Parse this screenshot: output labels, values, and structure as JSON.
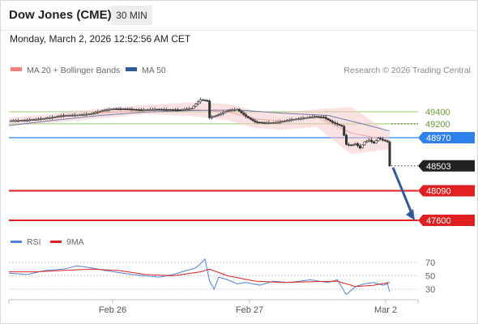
{
  "header": {
    "title": "Dow Jones (CME)",
    "timeframe": "30 MIN",
    "timestamp": "Monday, March 2, 2026 12:52:56 AM CET"
  },
  "legend": {
    "bollinger": {
      "label": "MA 20 + Bollinger Bands",
      "color": "#f08080"
    },
    "ma50": {
      "label": "MA 50",
      "color": "#2d5b9c"
    },
    "source": "Research © 2026 Trading Central"
  },
  "levels": [
    {
      "value": 49400,
      "label": "49400",
      "kind": "resistance",
      "color": "#9bc86a"
    },
    {
      "value": 49200,
      "label": "49200",
      "kind": "resistance",
      "color": "#9bc86a"
    },
    {
      "value": 48970,
      "label": "48970",
      "kind": "pivot",
      "color": "#2f80ed"
    },
    {
      "value": 48503,
      "label": "48503",
      "kind": "last",
      "color": "#222222"
    },
    {
      "value": 48090,
      "label": "48090",
      "kind": "support",
      "color": "#e02020"
    },
    {
      "value": 47600,
      "label": "47600",
      "kind": "support",
      "color": "#e02020"
    }
  ],
  "rsi_legend": {
    "rsi": "RSI",
    "ma": "9MA",
    "rsi_color": "#4f7fd6",
    "ma_color": "#e02020"
  },
  "rsi_ticks": [
    "70",
    "50",
    "30"
  ],
  "x_ticks": [
    "Feb 26",
    "Feb 27",
    "Mar 2"
  ],
  "chart_data": {
    "type": "candlestick",
    "y_range": [
      47500,
      50000
    ],
    "price_path": [
      [
        0,
        49250
      ],
      [
        6,
        49255
      ],
      [
        12,
        49275
      ],
      [
        18,
        49300
      ],
      [
        24,
        49340
      ],
      [
        30,
        49345
      ],
      [
        36,
        49365
      ],
      [
        41,
        49420
      ],
      [
        46,
        49450
      ],
      [
        52,
        49445
      ],
      [
        58,
        49430
      ],
      [
        64,
        49440
      ],
      [
        70,
        49435
      ],
      [
        75,
        49430
      ],
      [
        80,
        49455
      ],
      [
        84,
        49600
      ],
      [
        87,
        49580
      ],
      [
        88,
        49300
      ],
      [
        92,
        49350
      ],
      [
        96,
        49420
      ],
      [
        100,
        49440
      ],
      [
        104,
        49320
      ],
      [
        108,
        49230
      ],
      [
        112,
        49215
      ],
      [
        118,
        49225
      ],
      [
        124,
        49270
      ],
      [
        130,
        49300
      ],
      [
        134,
        49320
      ],
      [
        138,
        49310
      ],
      [
        142,
        49220
      ],
      [
        146,
        49160
      ],
      [
        148,
        48860
      ],
      [
        150,
        48840
      ],
      [
        152,
        48870
      ],
      [
        154,
        48800
      ],
      [
        156,
        48900
      ],
      [
        158,
        48930
      ],
      [
        160,
        48880
      ],
      [
        162,
        48960
      ],
      [
        164,
        48930
      ],
      [
        166,
        48900
      ],
      [
        167,
        48503
      ]
    ],
    "ma50": [
      [
        0,
        49170
      ],
      [
        20,
        49260
      ],
      [
        40,
        49340
      ],
      [
        60,
        49395
      ],
      [
        80,
        49420
      ],
      [
        100,
        49430
      ],
      [
        120,
        49375
      ],
      [
        140,
        49340
      ],
      [
        155,
        49200
      ],
      [
        167,
        49080
      ]
    ],
    "ma20": [
      [
        0,
        49240
      ],
      [
        20,
        49300
      ],
      [
        40,
        49380
      ],
      [
        60,
        49420
      ],
      [
        80,
        49440
      ],
      [
        96,
        49400
      ],
      [
        108,
        49280
      ],
      [
        120,
        49250
      ],
      [
        135,
        49310
      ],
      [
        150,
        49050
      ],
      [
        167,
        48920
      ]
    ],
    "bb_upper": [
      [
        0,
        49300
      ],
      [
        20,
        49370
      ],
      [
        40,
        49450
      ],
      [
        60,
        49510
      ],
      [
        80,
        49560
      ],
      [
        96,
        49530
      ],
      [
        108,
        49420
      ],
      [
        120,
        49390
      ],
      [
        135,
        49440
      ],
      [
        150,
        49480
      ],
      [
        167,
        49050
      ]
    ],
    "bb_lower": [
      [
        0,
        49170
      ],
      [
        20,
        49220
      ],
      [
        40,
        49290
      ],
      [
        60,
        49360
      ],
      [
        80,
        49330
      ],
      [
        96,
        49260
      ],
      [
        108,
        49130
      ],
      [
        120,
        49100
      ],
      [
        135,
        49150
      ],
      [
        150,
        48700
      ],
      [
        167,
        48780
      ]
    ],
    "projection": {
      "from": 48503,
      "to": 47600
    },
    "rsi": {
      "range": [
        0,
        100
      ],
      "values": [
        [
          0,
          54
        ],
        [
          8,
          52
        ],
        [
          16,
          58
        ],
        [
          24,
          60
        ],
        [
          30,
          65
        ],
        [
          36,
          62
        ],
        [
          42,
          58
        ],
        [
          48,
          55
        ],
        [
          54,
          52
        ],
        [
          60,
          50
        ],
        [
          66,
          48
        ],
        [
          72,
          52
        ],
        [
          78,
          58
        ],
        [
          82,
          62
        ],
        [
          84,
          68
        ],
        [
          86,
          75
        ],
        [
          88,
          42
        ],
        [
          90,
          30
        ],
        [
          92,
          48
        ],
        [
          96,
          44
        ],
        [
          100,
          38
        ],
        [
          104,
          40
        ],
        [
          110,
          36
        ],
        [
          116,
          42
        ],
        [
          122,
          40
        ],
        [
          128,
          42
        ],
        [
          132,
          44
        ],
        [
          136,
          42
        ],
        [
          140,
          40
        ],
        [
          144,
          44
        ],
        [
          148,
          22
        ],
        [
          150,
          28
        ],
        [
          152,
          34
        ],
        [
          156,
          38
        ],
        [
          160,
          40
        ],
        [
          164,
          36
        ],
        [
          166,
          38
        ],
        [
          167,
          26
        ]
      ],
      "ma": [
        [
          0,
          56
        ],
        [
          12,
          56
        ],
        [
          24,
          58
        ],
        [
          36,
          60
        ],
        [
          48,
          58
        ],
        [
          60,
          52
        ],
        [
          72,
          50
        ],
        [
          84,
          56
        ],
        [
          88,
          60
        ],
        [
          96,
          50
        ],
        [
          108,
          42
        ],
        [
          120,
          40
        ],
        [
          132,
          41
        ],
        [
          144,
          42
        ],
        [
          152,
          34
        ],
        [
          160,
          36
        ],
        [
          167,
          40
        ]
      ]
    }
  }
}
